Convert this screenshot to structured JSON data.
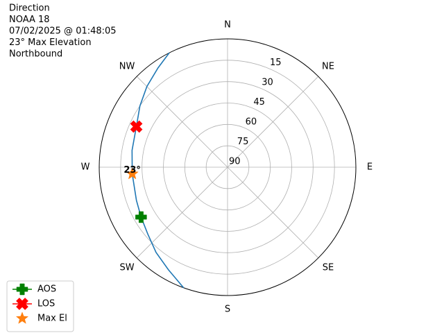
{
  "chart_data": {
    "type": "polar",
    "title_lines": [
      "Direction",
      "NOAA 18",
      "07/02/2025 @ 01:48:05",
      "23° Max Elevation",
      "Northbound"
    ],
    "rlim": [
      90,
      0
    ],
    "rticks": [
      15,
      30,
      45,
      60,
      75,
      90
    ],
    "thetaticks": [
      {
        "value": 0,
        "label": "N"
      },
      {
        "value": 45,
        "label": "NE"
      },
      {
        "value": 90,
        "label": "E"
      },
      {
        "value": 135,
        "label": "SE"
      },
      {
        "value": 180,
        "label": "S"
      },
      {
        "value": 225,
        "label": "SW"
      },
      {
        "value": 270,
        "label": "W"
      },
      {
        "value": 315,
        "label": "NW"
      }
    ],
    "grid": true,
    "legend_position": "lower left",
    "series": [
      {
        "color": "#1f77b4",
        "marker": "line",
        "theta": [
          200,
          210,
          220,
          230,
          240,
          250,
          266,
          280,
          294,
          305,
          315,
          325,
          333
        ],
        "r": [
          0,
          7,
          12,
          17,
          20,
          22,
          23,
          22,
          20,
          15,
          10,
          5,
          0
        ]
      },
      {
        "name": "AOS",
        "color": "#008000",
        "marker": "plus",
        "theta": [
          240
        ],
        "r": [
          20
        ]
      },
      {
        "name": "LOS",
        "color": "#ff0000",
        "marker": "x",
        "theta": [
          294
        ],
        "r": [
          20
        ]
      },
      {
        "name": "Max El",
        "color": "#ff7f0e",
        "marker": "star",
        "theta": [
          266
        ],
        "r": [
          23
        ]
      }
    ],
    "annotations": [
      {
        "text": "23°",
        "theta": 266,
        "r": 23
      }
    ]
  }
}
